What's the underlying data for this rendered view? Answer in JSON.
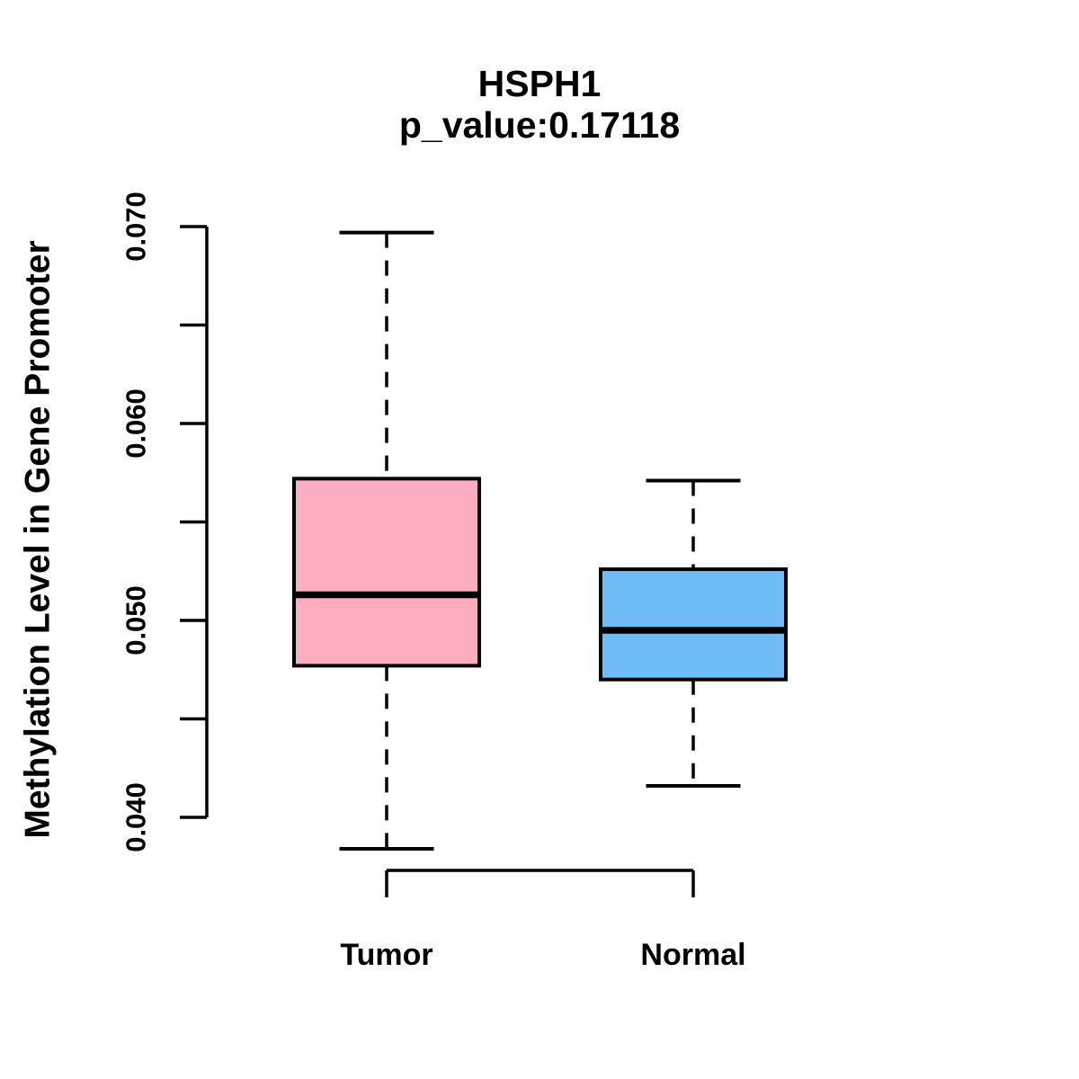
{
  "chart_data": {
    "type": "boxplot",
    "title": "HSPH1",
    "subtitle": "p_value:0.17118",
    "gene": "HSPH1",
    "p_value": "0.17118",
    "ylabel": "Methylation Level in Gene Promoter",
    "xlabel": "",
    "categories": [
      "Tumor",
      "Normal"
    ],
    "ylim": [
      0.04,
      0.07
    ],
    "yticks": [
      0.04,
      0.045,
      0.05,
      0.055,
      0.06,
      0.065,
      0.07
    ],
    "ytick_labels": [
      "0.040",
      "",
      "0.050",
      "",
      "0.060",
      "",
      "0.070"
    ],
    "grid": false,
    "legend": "none",
    "colors": {
      "tumor_fill": "#FBAEC2",
      "normal_fill": "#70BCF6",
      "stroke": "#000000",
      "background": "#FFFFFF"
    },
    "series": [
      {
        "name": "Tumor",
        "color": "#FBAEC2",
        "lower_whisker": 0.0384,
        "q1": 0.0477,
        "median": 0.0513,
        "q3": 0.0572,
        "upper_whisker": 0.0697
      },
      {
        "name": "Normal",
        "color": "#70BCF6",
        "lower_whisker": 0.0416,
        "q1": 0.047,
        "median": 0.0495,
        "q3": 0.0526,
        "upper_whisker": 0.0571
      }
    ]
  }
}
